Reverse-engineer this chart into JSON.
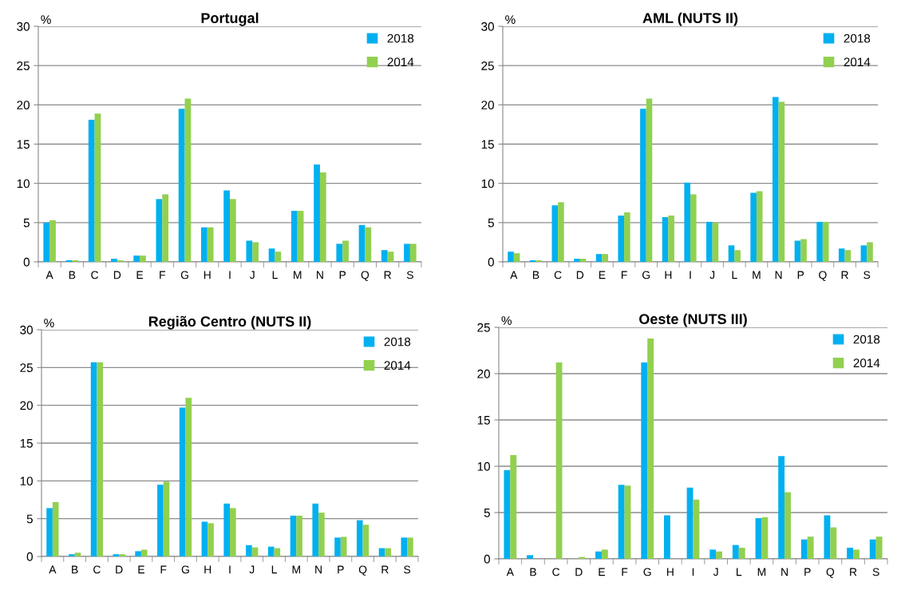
{
  "chart_data": [
    {
      "type": "bar",
      "title": "Portugal",
      "ylabel": "%",
      "categories": [
        "A",
        "B",
        "C",
        "D",
        "E",
        "F",
        "G",
        "H",
        "I",
        "J",
        "L",
        "M",
        "N",
        "P",
        "Q",
        "R",
        "S"
      ],
      "ylim": [
        0,
        30
      ],
      "yticks": [
        0,
        5,
        10,
        15,
        20,
        25,
        30
      ],
      "grid": "y",
      "legend": "top right",
      "series": [
        {
          "name": "2018",
          "color": "#00b0f0",
          "values": [
            5.0,
            0.2,
            18.1,
            0.4,
            0.8,
            8.0,
            19.5,
            4.4,
            9.1,
            2.7,
            1.7,
            6.5,
            12.4,
            2.3,
            4.7,
            1.5,
            2.3
          ]
        },
        {
          "name": "2014",
          "color": "#92d050",
          "values": [
            5.3,
            0.2,
            18.9,
            0.2,
            0.8,
            8.6,
            20.8,
            4.4,
            8.0,
            2.5,
            1.3,
            6.5,
            11.4,
            2.7,
            4.4,
            1.3,
            2.3
          ]
        }
      ]
    },
    {
      "type": "bar",
      "title": "AML (NUTS II)",
      "ylabel": "%",
      "categories": [
        "A",
        "B",
        "C",
        "D",
        "E",
        "F",
        "G",
        "H",
        "I",
        "J",
        "L",
        "M",
        "N",
        "P",
        "Q",
        "R",
        "S"
      ],
      "ylim": [
        0,
        30
      ],
      "yticks": [
        0,
        5,
        10,
        15,
        20,
        25,
        30
      ],
      "grid": "y",
      "legend": "top right",
      "series": [
        {
          "name": "2018",
          "color": "#00b0f0",
          "values": [
            1.3,
            0.2,
            7.2,
            0.4,
            1.0,
            5.9,
            19.5,
            5.7,
            10.1,
            5.1,
            2.1,
            8.8,
            21.0,
            2.7,
            5.1,
            1.7,
            2.1
          ]
        },
        {
          "name": "2014",
          "color": "#92d050",
          "values": [
            1.1,
            0.2,
            7.6,
            0.4,
            1.0,
            6.3,
            20.8,
            5.9,
            8.6,
            5.0,
            1.5,
            9.0,
            20.4,
            2.9,
            5.1,
            1.5,
            2.5
          ]
        }
      ]
    },
    {
      "type": "bar",
      "title": "Região Centro (NUTS II)",
      "ylabel": "%",
      "categories": [
        "A",
        "B",
        "C",
        "D",
        "E",
        "F",
        "G",
        "H",
        "I",
        "J",
        "L",
        "M",
        "N",
        "P",
        "Q",
        "R",
        "S"
      ],
      "ylim": [
        0,
        30
      ],
      "yticks": [
        0,
        5,
        10,
        15,
        20,
        25,
        30
      ],
      "grid": "y",
      "legend": "top right",
      "series": [
        {
          "name": "2018",
          "color": "#00b0f0",
          "values": [
            6.4,
            0.3,
            25.7,
            0.3,
            0.7,
            9.5,
            19.7,
            4.6,
            7.0,
            1.5,
            1.3,
            5.4,
            7.0,
            2.5,
            4.8,
            1.1,
            2.5
          ]
        },
        {
          "name": "2014",
          "color": "#92d050",
          "values": [
            7.2,
            0.5,
            25.7,
            0.3,
            0.9,
            9.9,
            21.0,
            4.4,
            6.4,
            1.2,
            1.1,
            5.4,
            5.8,
            2.6,
            4.2,
            1.1,
            2.5
          ]
        }
      ]
    },
    {
      "type": "bar",
      "title": "Oeste (NUTS III)",
      "ylabel": "%",
      "categories": [
        "A",
        "B",
        "C",
        "D",
        "E",
        "F",
        "G",
        "H",
        "I",
        "J",
        "L",
        "M",
        "N",
        "P",
        "Q",
        "R",
        "S"
      ],
      "ylim": [
        0,
        25
      ],
      "yticks": [
        0,
        5,
        10,
        15,
        20,
        25
      ],
      "grid": "y",
      "legend": "top right",
      "series": [
        {
          "name": "2018",
          "color": "#00b0f0",
          "values": [
            9.6,
            0.4,
            0,
            0,
            0.8,
            8.0,
            21.2,
            4.7,
            7.7,
            1.0,
            1.5,
            4.4,
            11.1,
            2.1,
            4.7,
            1.2,
            2.1
          ]
        },
        {
          "name": "2014",
          "color": "#92d050",
          "values": [
            11.2,
            0,
            21.2,
            0.2,
            1.0,
            7.9,
            23.8,
            0,
            6.4,
            0.8,
            1.2,
            4.5,
            7.2,
            2.4,
            3.4,
            1.0,
            2.4
          ]
        }
      ]
    }
  ]
}
